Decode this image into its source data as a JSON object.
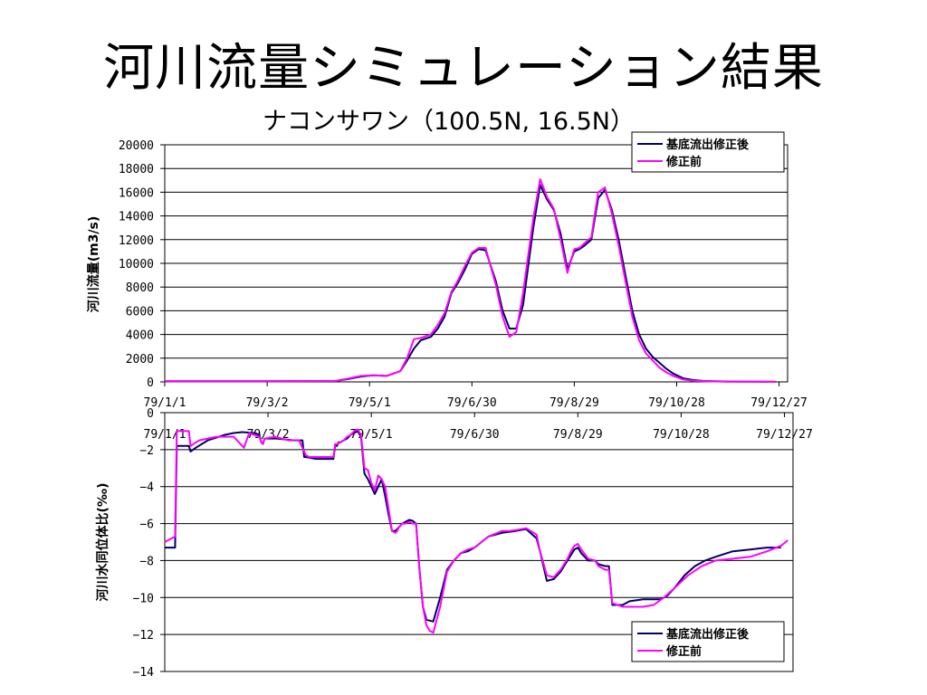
{
  "title": "河川流量シミュレーション結果",
  "subtitle": "ナコンサワン（100.5N, 16.5N）",
  "colors": {
    "corrected": "#000066",
    "uncorrected": "#ff00ff",
    "grid": "#000000"
  },
  "chart_data": [
    {
      "type": "line",
      "ylabel": "河川流量(m3/s)",
      "ylim": [
        0,
        20000
      ],
      "yticks": [
        "0",
        "2000",
        "4000",
        "6000",
        "8000",
        "10000",
        "12000",
        "14000",
        "16000",
        "18000",
        "20000"
      ],
      "xlim": [
        0,
        365
      ],
      "xticks": [
        {
          "day": 0,
          "label": "79/1/1"
        },
        {
          "day": 60,
          "label": "79/3/2"
        },
        {
          "day": 120,
          "label": "79/5/1"
        },
        {
          "day": 180,
          "label": "79/6/30"
        },
        {
          "day": 240,
          "label": "79/8/29"
        },
        {
          "day": 300,
          "label": "79/10/28"
        },
        {
          "day": 360,
          "label": "79/12/27"
        }
      ],
      "grid": "horizontal",
      "legend_position": "top-right",
      "series": [
        {
          "name": "基底流出修正後",
          "color_key": "corrected",
          "x": [
            0,
            20,
            60,
            100,
            108,
            115,
            122,
            130,
            138,
            142,
            146,
            150,
            156,
            160,
            164,
            168,
            172,
            176,
            180,
            184,
            188,
            194,
            198,
            202,
            206,
            210,
            216,
            220,
            224,
            228,
            232,
            236,
            240,
            243,
            246,
            250,
            254,
            258,
            262,
            266,
            270,
            274,
            278,
            282,
            286,
            290,
            294,
            298,
            304,
            310,
            316,
            322,
            330,
            345,
            358
          ],
          "y": [
            50,
            60,
            50,
            80,
            250,
            450,
            550,
            500,
            900,
            1800,
            2800,
            3500,
            3800,
            4500,
            5500,
            7500,
            8400,
            9500,
            10800,
            11200,
            11100,
            8500,
            6000,
            4500,
            4500,
            6500,
            13000,
            16600,
            15400,
            14500,
            12500,
            9500,
            11000,
            11200,
            11500,
            12000,
            15500,
            16200,
            14500,
            12000,
            9000,
            6000,
            4000,
            2800,
            2100,
            1600,
            1100,
            700,
            300,
            150,
            80,
            50,
            30,
            20,
            10
          ]
        },
        {
          "name": "修正前",
          "color_key": "uncorrected",
          "x": [
            0,
            20,
            60,
            100,
            108,
            115,
            122,
            130,
            138,
            142,
            146,
            150,
            156,
            160,
            164,
            168,
            172,
            176,
            180,
            184,
            188,
            194,
            198,
            202,
            206,
            210,
            216,
            220,
            224,
            228,
            232,
            236,
            240,
            243,
            246,
            250,
            254,
            258,
            262,
            266,
            270,
            274,
            278,
            282,
            286,
            290,
            294,
            298,
            304,
            310,
            316,
            322,
            330,
            345,
            358
          ],
          "y": [
            50,
            60,
            50,
            80,
            300,
            500,
            550,
            500,
            900,
            2000,
            3600,
            3700,
            4000,
            4800,
            5800,
            7600,
            8600,
            9800,
            10900,
            11300,
            11300,
            8200,
            5500,
            3800,
            4200,
            7500,
            13800,
            17100,
            15600,
            14600,
            12000,
            9200,
            11200,
            11300,
            11700,
            12200,
            16000,
            16400,
            14200,
            11500,
            8500,
            5500,
            3500,
            2400,
            1800,
            1200,
            800,
            500,
            200,
            100,
            60,
            40,
            20,
            15,
            10
          ]
        }
      ]
    },
    {
      "type": "line",
      "ylabel": "河川水同位体比(‰)",
      "ylim": [
        -14,
        0
      ],
      "yticks": [
        "−14",
        "−12",
        "−10",
        "−8",
        "−6",
        "−4",
        "−2",
        "0"
      ],
      "xlim": [
        0,
        365
      ],
      "xticks": [
        {
          "day": 0,
          "label": "79/1/1"
        },
        {
          "day": 60,
          "label": "79/3/2"
        },
        {
          "day": 120,
          "label": "79/5/1"
        },
        {
          "day": 180,
          "label": "79/6/30"
        },
        {
          "day": 240,
          "label": "79/8/29"
        },
        {
          "day": 300,
          "label": "79/10/28"
        },
        {
          "day": 360,
          "label": "79/12/27"
        }
      ],
      "grid": "horizontal",
      "legend_position": "bottom-right",
      "series": [
        {
          "name": "基底流出修正後",
          "color_key": "corrected",
          "x": [
            0,
            6,
            7,
            8,
            14,
            15,
            18,
            25,
            35,
            40,
            45,
            52,
            55,
            56,
            57,
            58,
            65,
            75,
            80,
            81,
            82,
            88,
            92,
            96,
            98,
            99,
            100,
            101,
            102,
            104,
            106,
            108,
            110,
            112,
            114,
            116,
            118,
            122,
            124,
            126,
            128,
            130,
            132,
            134,
            135,
            136,
            138,
            140,
            142,
            144,
            146,
            148,
            150,
            152,
            156,
            160,
            164,
            168,
            172,
            176,
            180,
            188,
            196,
            200,
            204,
            210,
            216,
            218,
            222,
            226,
            230,
            234,
            236,
            238,
            240,
            242,
            246,
            250,
            252,
            256,
            258,
            260,
            266,
            270,
            278,
            284,
            288,
            292,
            296,
            302,
            308,
            314,
            320,
            330,
            340,
            345,
            350,
            358
          ],
          "y": [
            -7.3,
            -7.3,
            -1.8,
            -1.8,
            -1.8,
            -2.1,
            -1.9,
            -1.5,
            -1.2,
            -1.1,
            -1.05,
            -1.1,
            -1.2,
            -1.6,
            -1.7,
            -1.4,
            -1.4,
            -1.5,
            -1.5,
            -2.4,
            -2.4,
            -2.5,
            -2.5,
            -2.5,
            -2.5,
            -1.8,
            -1.8,
            -1.6,
            -1.6,
            -1.5,
            -1.4,
            -1.2,
            -1.1,
            -1.0,
            -1.3,
            -3.3,
            -3.6,
            -4.4,
            -4.0,
            -3.6,
            -4.5,
            -5.5,
            -6.4,
            -6.4,
            -6.3,
            -6.2,
            -6.0,
            -5.9,
            -5.8,
            -5.85,
            -6.0,
            -8.5,
            -10.5,
            -11.2,
            -11.3,
            -10.0,
            -8.5,
            -8.0,
            -7.6,
            -7.5,
            -7.3,
            -6.7,
            -6.5,
            -6.45,
            -6.4,
            -6.3,
            -6.8,
            -7.5,
            -9.1,
            -9.0,
            -8.6,
            -8.0,
            -7.7,
            -7.4,
            -7.3,
            -7.6,
            -8.0,
            -8.0,
            -8.2,
            -8.3,
            -8.3,
            -10.4,
            -10.4,
            -10.2,
            -10.1,
            -10.1,
            -10.1,
            -9.9,
            -9.5,
            -8.8,
            -8.3,
            -8.0,
            -7.8,
            -7.5,
            -7.4,
            -7.35,
            -7.3,
            -7.3
          ]
        },
        {
          "name": "修正前",
          "color_key": "uncorrected",
          "x": [
            0,
            4,
            6,
            7,
            8,
            14,
            15,
            20,
            30,
            40,
            46,
            49,
            52,
            55,
            56,
            57,
            58,
            64,
            72,
            78,
            82,
            84,
            86,
            92,
            96,
            98,
            99,
            100,
            102,
            104,
            106,
            108,
            110,
            112,
            114,
            116,
            118,
            120,
            122,
            124,
            126,
            128,
            130,
            132,
            134,
            135,
            136,
            138,
            140,
            142,
            144,
            146,
            148,
            150,
            152,
            154,
            156,
            160,
            164,
            168,
            172,
            176,
            180,
            188,
            196,
            200,
            204,
            210,
            216,
            218,
            222,
            226,
            230,
            234,
            236,
            238,
            240,
            242,
            246,
            250,
            252,
            256,
            258,
            260,
            266,
            270,
            278,
            284,
            290,
            296,
            304,
            312,
            320,
            330,
            340,
            350,
            358,
            362
          ],
          "y": [
            -7.0,
            -6.8,
            -6.7,
            -1.0,
            -1.0,
            -1.0,
            -1.8,
            -1.5,
            -1.3,
            -1.3,
            -1.9,
            -1.1,
            -1.2,
            -1.3,
            -1.6,
            -1.7,
            -1.4,
            -1.3,
            -1.5,
            -1.5,
            -2.3,
            -2.4,
            -2.4,
            -2.4,
            -2.4,
            -2.4,
            -1.7,
            -1.7,
            -1.6,
            -1.5,
            -1.3,
            -1.2,
            -1.0,
            -0.9,
            -1.2,
            -3.0,
            -3.1,
            -3.8,
            -4.2,
            -3.4,
            -3.6,
            -4.0,
            -5.2,
            -6.4,
            -6.5,
            -6.4,
            -6.2,
            -6.0,
            -6.0,
            -5.9,
            -6.0,
            -6.0,
            -8.5,
            -10.5,
            -11.5,
            -11.8,
            -11.9,
            -10.5,
            -8.6,
            -8.0,
            -7.6,
            -7.4,
            -7.3,
            -6.7,
            -6.4,
            -6.4,
            -6.35,
            -6.25,
            -6.6,
            -7.5,
            -8.8,
            -8.9,
            -8.5,
            -7.9,
            -7.5,
            -7.2,
            -7.1,
            -7.4,
            -7.9,
            -8.0,
            -8.3,
            -8.5,
            -8.5,
            -10.3,
            -10.5,
            -10.5,
            -10.5,
            -10.4,
            -10.0,
            -9.5,
            -8.8,
            -8.3,
            -8.0,
            -7.9,
            -7.8,
            -7.5,
            -7.2,
            -6.9
          ]
        }
      ]
    }
  ]
}
